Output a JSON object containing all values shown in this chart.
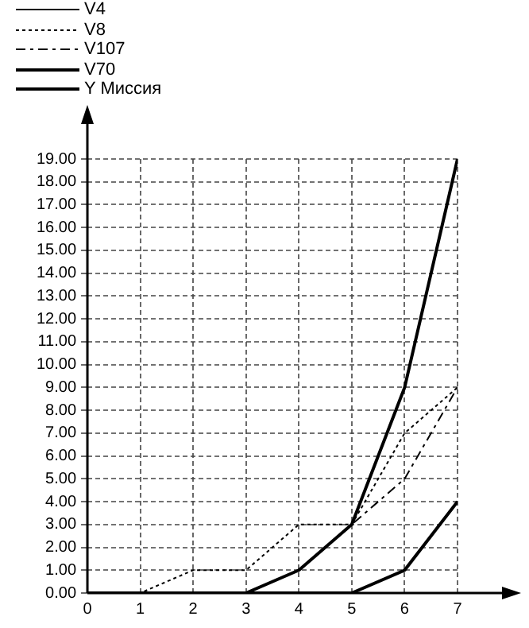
{
  "chart_data": {
    "type": "line",
    "legend": "top left",
    "grid": true,
    "marker": "none",
    "x": [
      0,
      1,
      2,
      3,
      4,
      5,
      6,
      7
    ],
    "xlim": [
      0,
      7
    ],
    "xticks": [
      0,
      1,
      2,
      3,
      4,
      5,
      6,
      7
    ],
    "ylim": [
      0,
      19
    ],
    "yticks": [
      {
        "value": 0,
        "label": "0.00"
      },
      {
        "value": 1,
        "label": "1.00"
      },
      {
        "value": 2,
        "label": "2.00"
      },
      {
        "value": 3,
        "label": "3.00"
      },
      {
        "value": 4,
        "label": "4.00"
      },
      {
        "value": 5,
        "label": "5.00"
      },
      {
        "value": 6,
        "label": "6.00"
      },
      {
        "value": 7,
        "label": "7.00"
      },
      {
        "value": 8,
        "label": "8.00"
      },
      {
        "value": 9,
        "label": "9.00"
      },
      {
        "value": 10,
        "label": "10.00"
      },
      {
        "value": 11,
        "label": "11.00"
      },
      {
        "value": 12,
        "label": "12.00"
      },
      {
        "value": 13,
        "label": "13.00"
      },
      {
        "value": 14,
        "label": "14.00"
      },
      {
        "value": 15,
        "label": "15.00"
      },
      {
        "value": 16,
        "label": "16.00"
      },
      {
        "value": 17,
        "label": "17.00"
      },
      {
        "value": 18,
        "label": "18.00"
      },
      {
        "value": 19,
        "label": "19.00"
      }
    ],
    "series": [
      {
        "name": "V4",
        "color": "#000000",
        "line_style": "solid",
        "values": [
          null,
          null,
          null,
          null,
          null,
          null,
          null,
          null
        ]
      },
      {
        "name": "V8",
        "color": "#000000",
        "line_style": "dotted",
        "values": [
          0,
          0,
          1,
          1,
          3,
          3,
          7,
          9
        ]
      },
      {
        "name": "V107",
        "color": "#000000",
        "line_style": "dashed",
        "values": [
          0,
          0,
          0,
          0,
          1,
          3,
          5,
          9
        ]
      },
      {
        "name": "V70",
        "color": "#000000",
        "line_style": "solid",
        "values": [
          0,
          0,
          0,
          0,
          1,
          3,
          9,
          19
        ]
      },
      {
        "name": "Y Миссия",
        "color": "#000000",
        "line_style": "solid",
        "values": [
          0,
          0,
          0,
          0,
          0,
          0,
          1,
          4
        ]
      }
    ]
  }
}
